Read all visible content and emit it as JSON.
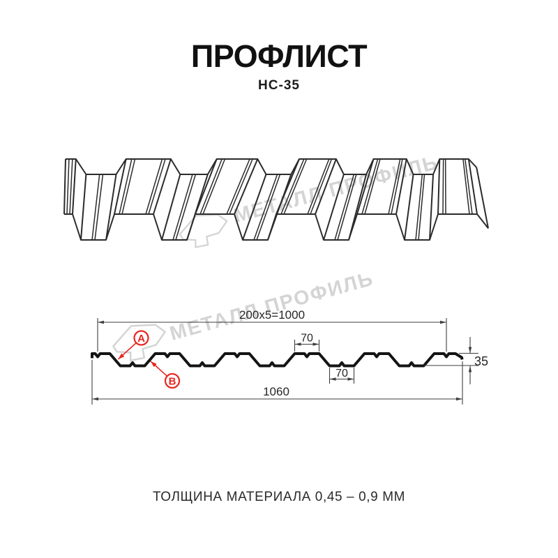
{
  "header": {
    "title": "ПРОФЛИСТ",
    "subtitle": "НС-35"
  },
  "watermark": {
    "brand": "МЕТАЛЛ ПРОФИЛЬ",
    "color": "#d4d4d4"
  },
  "diagram": {
    "dim_top_pitch": "200x5=1000",
    "dim_rib_top_width": "70",
    "dim_rib_bottom_width": "70",
    "dim_profile_height": "35",
    "dim_overall_width": "1060",
    "marker_a": "A",
    "marker_b": "B",
    "colors": {
      "profile": "#141414",
      "dimension": "#3e3e3e",
      "text": "#262626",
      "marker": "#e8251f",
      "line3d": "#2b2b2b"
    }
  },
  "footer": {
    "note": "ТОЛЩИНА МАТЕРИАЛА 0,45 – 0,9 ММ"
  }
}
